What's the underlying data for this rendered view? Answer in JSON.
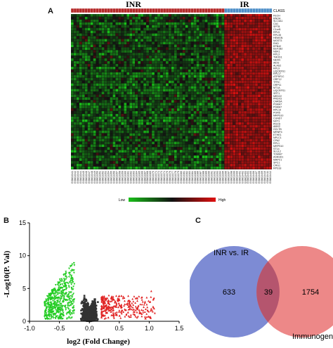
{
  "panels": {
    "a": {
      "letter": "A"
    },
    "b": {
      "letter": "B"
    },
    "c": {
      "letter": "C"
    }
  },
  "heatmap": {
    "group_left": "INR",
    "group_right": "IR",
    "class_label": "CLASS",
    "legend_low": "Low",
    "legend_high": "High",
    "colors": {
      "inr_bar": "#b52b2b",
      "ir_bar": "#4f8fc8",
      "up": "#e01010",
      "down": "#19c019",
      "neutral": "#111111"
    },
    "gene_labels": [
      "FECH",
      "RNOA",
      "SLC4A1",
      "CA1",
      "SPTB",
      "C1orf1",
      "RPL5",
      "RPL35",
      "HEMGN",
      "MGST3",
      "RHD",
      "EPB42",
      "EEF1B2",
      "NDK1",
      "RPL3",
      "TMOD1",
      "NEXN",
      "AIDS",
      "ALAS2",
      "RPL9",
      "UQCRFS1",
      "RPL17",
      "ATP5F1C",
      "ORF12",
      "TFRC",
      "ORP11",
      "MT1A",
      "UQCRFS1",
      "SRT1",
      "MED22",
      "PRDX3",
      "CARDA",
      "PSMA7",
      "PSMA7",
      "RPL19",
      "POR5",
      "MRPS10",
      "CUND7",
      "NXT1",
      "PDCD",
      "AMX2",
      "GCLTB",
      "MRNP4",
      "ETHE1",
      "NPLC1",
      "CPA2",
      "RPL1",
      "MRPS10",
      "ST14",
      "SLUL2",
      "TOMM7",
      "ASNSD1",
      "MAPC1",
      "SPC1",
      "CRG1",
      "RPS18"
    ],
    "sample_labels": [
      "GSM13341",
      "GSM13342",
      "GSM13343",
      "GSM13344",
      "GSM13345",
      "GSM13346",
      "GSM13347",
      "GSM13348",
      "GSM13349",
      "GSM13350",
      "GSM13351",
      "GSM13352",
      "GSM13353",
      "GSM13354",
      "GSM13355",
      "GSM13356",
      "GSM13357",
      "GSM13358",
      "GSM13359",
      "GSM13360",
      "GSM13361",
      "GSM13362",
      "GSM13363",
      "GSM13364",
      "GSM13365",
      "GSM13366",
      "GSM13367",
      "GSM13368",
      "GSM13369",
      "GSM13370",
      "GSM13371",
      "GSM13372",
      "GSM13373",
      "GSM13374",
      "GSM13375",
      "GSM13376",
      "GSM13377",
      "GSM13378",
      "GSM13379",
      "GSM13380",
      "GSM13381",
      "GSM13382",
      "GSM13383",
      "GSM13384",
      "GSM13385",
      "GSM13386",
      "GSM13387",
      "GSM13388",
      "GSM13389",
      "GSM13390",
      "GSM13391",
      "GSM13392",
      "GSM13393",
      "GSM13394",
      "GSM13395",
      "GSM13396",
      "GSM13397",
      "GSM13398",
      "GSM13399",
      "GSM13400",
      "GSM13401",
      "GSM13402",
      "GSM13403",
      "GSM13404",
      "GSM13405",
      "GSM13406",
      "GSM13407",
      "GSM13408",
      "GSM13409",
      "GSM13410",
      "GSM13411",
      "GSM13412"
    ],
    "n_inr": 55,
    "n_ir": 17
  },
  "venn": {
    "set_a_label": "INR vs. IR",
    "set_b_label": "Immunogene",
    "only_a": "633",
    "both": "39",
    "only_b": "1754",
    "colors": {
      "a": "#6677cc",
      "b": "#e86a6a",
      "overlap": "#b5556e"
    }
  },
  "chart_data": {
    "type": "scatter",
    "title": "",
    "xlabel": "log2 (Fold Change)",
    "ylabel": "-Log10(P. Val)",
    "xlim": [
      -1.0,
      1.5
    ],
    "ylim": [
      0,
      15
    ],
    "xticks": [
      "-1.0",
      "-0.5",
      "0.0",
      "0.5",
      "1.0",
      "1.5"
    ],
    "yticks": [
      "0",
      "5",
      "10",
      "15"
    ],
    "series": [
      {
        "color": "#22cc22",
        "marker": "triangle-down",
        "count": 520,
        "x_range": [
          -0.75,
          -0.25
        ],
        "y_max": 9.5
      },
      {
        "color": "#333333",
        "marker": "square",
        "count": 2600,
        "x_range": [
          -0.32,
          0.28
        ],
        "y_max": 13.5
      },
      {
        "color": "#e02020",
        "marker": "triangle-up",
        "count": 320,
        "x_range": [
          0.2,
          1.1
        ],
        "y_max": 6.5
      }
    ]
  }
}
